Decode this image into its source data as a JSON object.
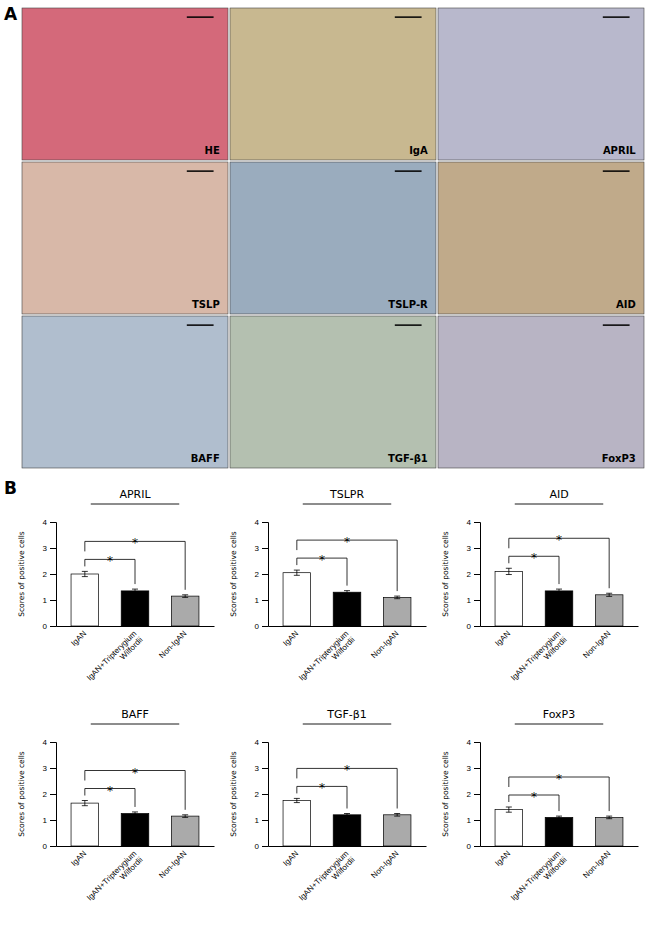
{
  "chart_data": [
    {
      "type": "tiles",
      "annotations": [
        {
          "text": "A"
        }
      ],
      "categories": [
        "HE",
        "IgA",
        "APRIL",
        "TSLP",
        "TSLP-R",
        "AID",
        "BAFF",
        "TGF-β1",
        "FoxP3"
      ],
      "colors": [
        "#d4697a",
        "#c8b890",
        "#b8b8cc",
        "#d8b8a8",
        "#9aacbe",
        "#c0aa8a",
        "#b0bece",
        "#b4c0b0",
        "#b8b4c4"
      ]
    },
    {
      "type": "bar",
      "title": "APRIL",
      "ylabel": "Scores of positive cells",
      "categories": [
        "IgAN",
        "IgAN+Tripterygium\nWilfordii",
        "Non-IgAN"
      ],
      "values": [
        2.0,
        1.35,
        1.15
      ],
      "errors": [
        0.1,
        0.07,
        0.05
      ],
      "colors": [
        "white",
        "black",
        "#aaaaaa"
      ],
      "ylim": [
        0,
        4
      ],
      "yticks": [
        0,
        1,
        2,
        3,
        4
      ],
      "annotations": [
        {
          "text": "B"
        },
        {
          "text": "*",
          "from": "IgAN",
          "to": "IgAN+Tripterygium\nWilfordii"
        },
        {
          "text": "*",
          "from": "IgAN",
          "to": "Non-IgAN"
        }
      ]
    },
    {
      "type": "bar",
      "title": "TSLPR",
      "ylabel": "Scores of positive cells",
      "categories": [
        "IgAN",
        "IgAN+Tripterygium\nWilfordii",
        "Non-IgAN"
      ],
      "values": [
        2.05,
        1.3,
        1.1
      ],
      "errors": [
        0.1,
        0.06,
        0.05
      ],
      "colors": [
        "white",
        "black",
        "#aaaaaa"
      ],
      "ylim": [
        0,
        4
      ],
      "yticks": [
        0,
        1,
        2,
        3,
        4
      ],
      "annotations": [
        {
          "text": "*",
          "from": "IgAN",
          "to": "IgAN+Tripterygium\nWilfordii"
        },
        {
          "text": "*",
          "from": "IgAN",
          "to": "Non-IgAN"
        }
      ]
    },
    {
      "type": "bar",
      "title": "AID",
      "ylabel": "Scores of positive cells",
      "categories": [
        "IgAN",
        "IgAN+Tripterygium\nWilfordii",
        "Non-IgAN"
      ],
      "values": [
        2.1,
        1.35,
        1.2
      ],
      "errors": [
        0.12,
        0.07,
        0.06
      ],
      "colors": [
        "white",
        "black",
        "#aaaaaa"
      ],
      "ylim": [
        0,
        4
      ],
      "yticks": [
        0,
        1,
        2,
        3,
        4
      ],
      "annotations": [
        {
          "text": "*",
          "from": "IgAN",
          "to": "IgAN+Tripterygium\nWilfordii"
        },
        {
          "text": "*",
          "from": "IgAN",
          "to": "Non-IgAN"
        }
      ]
    },
    {
      "type": "bar",
      "title": "BAFF",
      "ylabel": "Scores of positive cells",
      "categories": [
        "IgAN",
        "IgAN+Tripterygium\nWilfordii",
        "Non-IgAN"
      ],
      "values": [
        1.65,
        1.25,
        1.15
      ],
      "errors": [
        0.1,
        0.06,
        0.05
      ],
      "colors": [
        "white",
        "black",
        "#aaaaaa"
      ],
      "ylim": [
        0,
        4
      ],
      "yticks": [
        0,
        1,
        2,
        3,
        4
      ],
      "annotations": [
        {
          "text": "*",
          "from": "IgAN",
          "to": "IgAN+Tripterygium\nWilfordii"
        },
        {
          "text": "*",
          "from": "IgAN",
          "to": "Non-IgAN"
        }
      ]
    },
    {
      "type": "bar",
      "title": "TGF-β1",
      "ylabel": "Scores of positive cells",
      "categories": [
        "IgAN",
        "IgAN+Tripterygium\nWilfordii",
        "Non-IgAN"
      ],
      "values": [
        1.75,
        1.2,
        1.2
      ],
      "errors": [
        0.08,
        0.05,
        0.05
      ],
      "colors": [
        "white",
        "black",
        "#aaaaaa"
      ],
      "ylim": [
        0,
        4
      ],
      "yticks": [
        0,
        1,
        2,
        3,
        4
      ],
      "annotations": [
        {
          "text": "*",
          "from": "IgAN",
          "to": "IgAN+Tripterygium\nWilfordii"
        },
        {
          "text": "*",
          "from": "IgAN",
          "to": "Non-IgAN"
        }
      ]
    },
    {
      "type": "bar",
      "title": "FoxP3",
      "ylabel": "Scores of positive cells",
      "categories": [
        "IgAN",
        "IgAN+Tripterygium\nWilfordii",
        "Non-IgAN"
      ],
      "values": [
        1.4,
        1.1,
        1.1
      ],
      "errors": [
        0.1,
        0.05,
        0.05
      ],
      "colors": [
        "white",
        "black",
        "#aaaaaa"
      ],
      "ylim": [
        0,
        4
      ],
      "yticks": [
        0,
        1,
        2,
        3,
        4
      ],
      "annotations": [
        {
          "text": "*",
          "from": "IgAN",
          "to": "IgAN+Tripterygium\nWilfordii"
        },
        {
          "text": "*",
          "from": "IgAN",
          "to": "Non-IgAN"
        }
      ]
    }
  ]
}
